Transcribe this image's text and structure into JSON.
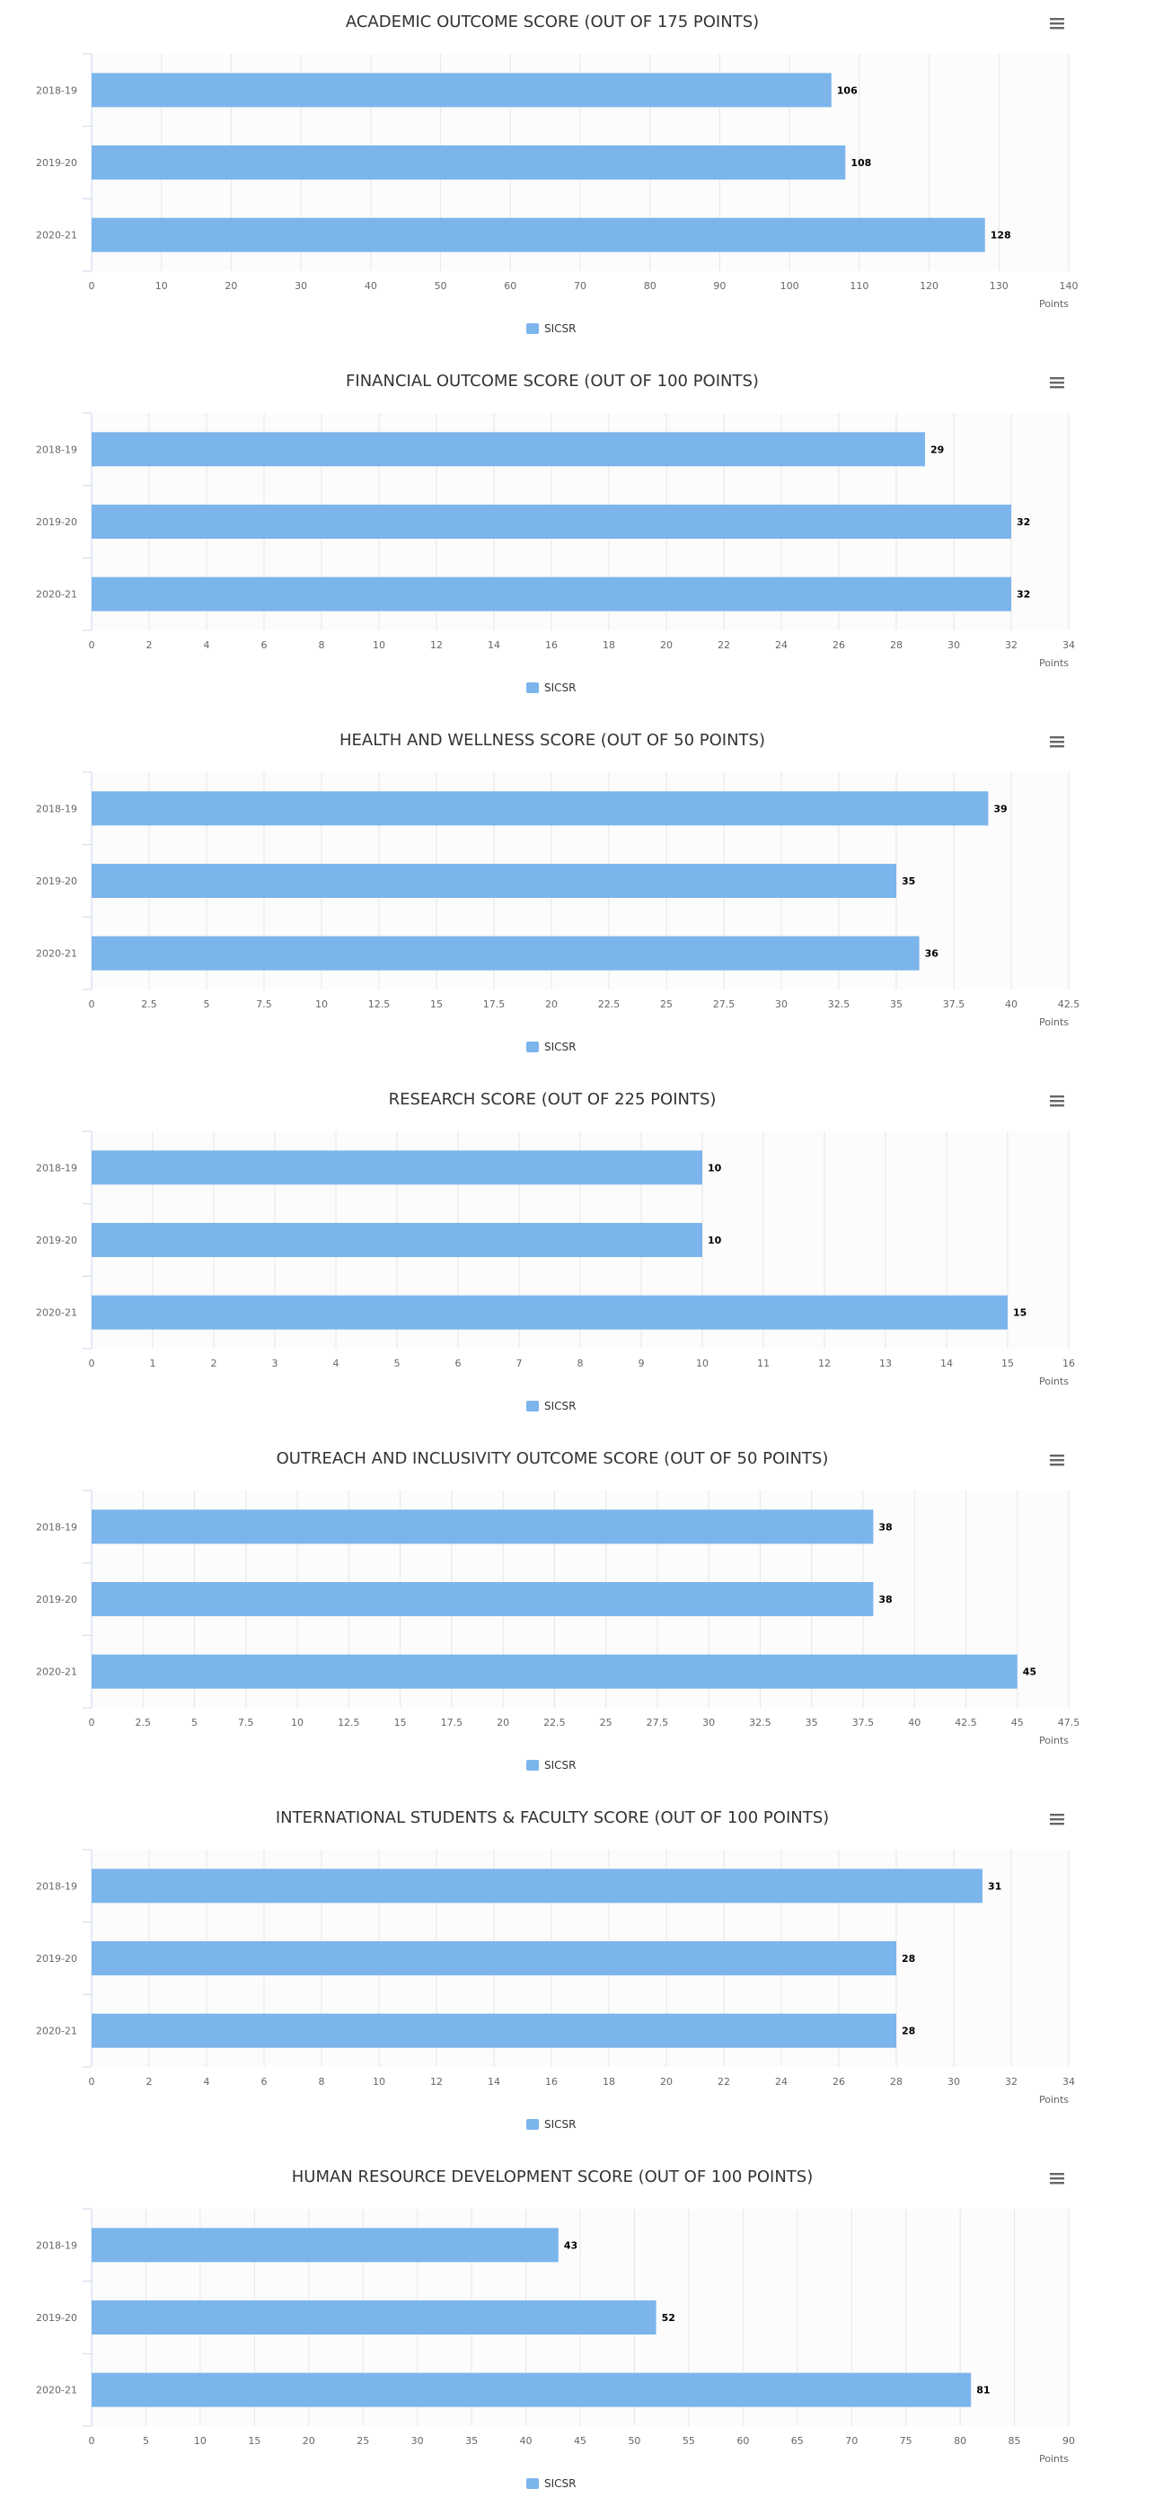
{
  "colors": {
    "bar": "#7cb5ec",
    "grid": "#e6e6e6",
    "axis": "#ccd6eb",
    "plot_bg": "#fcfcfc"
  },
  "menu_icon": "hamburger-menu-icon",
  "chart_data": [
    {
      "type": "bar",
      "orientation": "horizontal",
      "title": "ACADEMIC OUTCOME SCORE (OUT OF 175 POINTS)",
      "categories": [
        "2018-19",
        "2019-20",
        "2020-21"
      ],
      "series": [
        {
          "name": "SICSR",
          "values": [
            106,
            108,
            128
          ]
        }
      ],
      "xlabel": "Points",
      "xlim": [
        0,
        140
      ],
      "ticks": [
        0,
        10,
        20,
        30,
        40,
        50,
        60,
        70,
        80,
        90,
        100,
        110,
        120,
        130,
        140
      ],
      "tick_labels": [
        "0",
        "10",
        "20",
        "30",
        "40",
        "50",
        "60",
        "70",
        "80",
        "90",
        "100",
        "110",
        "120",
        "130",
        "140"
      ],
      "grid": true,
      "legend": "bottom-center"
    },
    {
      "type": "bar",
      "orientation": "horizontal",
      "title": "FINANCIAL OUTCOME SCORE (OUT OF 100 POINTS)",
      "categories": [
        "2018-19",
        "2019-20",
        "2020-21"
      ],
      "series": [
        {
          "name": "SICSR",
          "values": [
            29,
            32,
            32
          ]
        }
      ],
      "xlabel": "Points",
      "xlim": [
        0,
        34
      ],
      "ticks": [
        0,
        2,
        4,
        6,
        8,
        10,
        12,
        14,
        16,
        18,
        20,
        22,
        24,
        26,
        28,
        30,
        32,
        34
      ],
      "tick_labels": [
        "0",
        "2",
        "4",
        "6",
        "8",
        "10",
        "12",
        "14",
        "16",
        "18",
        "20",
        "22",
        "24",
        "26",
        "28",
        "30",
        "32",
        "34"
      ],
      "grid": true,
      "legend": "bottom-center"
    },
    {
      "type": "bar",
      "orientation": "horizontal",
      "title": "HEALTH AND WELLNESS SCORE (OUT OF 50 POINTS)",
      "categories": [
        "2018-19",
        "2019-20",
        "2020-21"
      ],
      "series": [
        {
          "name": "SICSR",
          "values": [
            39,
            35,
            36
          ]
        }
      ],
      "xlabel": "Points",
      "xlim": [
        0,
        42.5
      ],
      "ticks": [
        0,
        2.5,
        5,
        7.5,
        10,
        12.5,
        15,
        17.5,
        20,
        22.5,
        25,
        27.5,
        30,
        32.5,
        35,
        37.5,
        40,
        42.5
      ],
      "tick_labels": [
        "0",
        "2.5",
        "5",
        "7.5",
        "10",
        "12.5",
        "15",
        "17.5",
        "20",
        "22.5",
        "25",
        "27.5",
        "30",
        "32.5",
        "35",
        "37.5",
        "40",
        "42.5"
      ],
      "grid": true,
      "legend": "bottom-center"
    },
    {
      "type": "bar",
      "orientation": "horizontal",
      "title": "RESEARCH SCORE (OUT OF 225 POINTS)",
      "categories": [
        "2018-19",
        "2019-20",
        "2020-21"
      ],
      "series": [
        {
          "name": "SICSR",
          "values": [
            10,
            10,
            15
          ]
        }
      ],
      "xlabel": "Points",
      "xlim": [
        0,
        16
      ],
      "ticks": [
        0,
        1,
        2,
        3,
        4,
        5,
        6,
        7,
        8,
        9,
        10,
        11,
        12,
        13,
        14,
        15,
        16
      ],
      "tick_labels": [
        "0",
        "1",
        "2",
        "3",
        "4",
        "5",
        "6",
        "7",
        "8",
        "9",
        "10",
        "11",
        "12",
        "13",
        "14",
        "15",
        "16"
      ],
      "grid": true,
      "legend": "bottom-center"
    },
    {
      "type": "bar",
      "orientation": "horizontal",
      "title": "OUTREACH AND INCLUSIVITY OUTCOME SCORE (OUT OF 50 POINTS)",
      "categories": [
        "2018-19",
        "2019-20",
        "2020-21"
      ],
      "series": [
        {
          "name": "SICSR",
          "values": [
            38,
            38,
            45
          ]
        }
      ],
      "xlabel": "Points",
      "xlim": [
        0,
        47.5
      ],
      "ticks": [
        0,
        2.5,
        5,
        7.5,
        10,
        12.5,
        15,
        17.5,
        20,
        22.5,
        25,
        27.5,
        30,
        32.5,
        35,
        37.5,
        40,
        42.5,
        45,
        47.5
      ],
      "tick_labels": [
        "0",
        "2.5",
        "5",
        "7.5",
        "10",
        "12.5",
        "15",
        "17.5",
        "20",
        "22.5",
        "25",
        "27.5",
        "30",
        "32.5",
        "35",
        "37.5",
        "40",
        "42.5",
        "45",
        "47.5"
      ],
      "grid": true,
      "legend": "bottom-center"
    },
    {
      "type": "bar",
      "orientation": "horizontal",
      "title": "INTERNATIONAL STUDENTS & FACULTY SCORE (OUT OF 100 POINTS)",
      "categories": [
        "2018-19",
        "2019-20",
        "2020-21"
      ],
      "series": [
        {
          "name": "SICSR",
          "values": [
            31,
            28,
            28
          ]
        }
      ],
      "xlabel": "Points",
      "xlim": [
        0,
        34
      ],
      "ticks": [
        0,
        2,
        4,
        6,
        8,
        10,
        12,
        14,
        16,
        18,
        20,
        22,
        24,
        26,
        28,
        30,
        32,
        34
      ],
      "tick_labels": [
        "0",
        "2",
        "4",
        "6",
        "8",
        "10",
        "12",
        "14",
        "16",
        "18",
        "20",
        "22",
        "24",
        "26",
        "28",
        "30",
        "32",
        "34"
      ],
      "grid": true,
      "legend": "bottom-center"
    },
    {
      "type": "bar",
      "orientation": "horizontal",
      "title": "HUMAN RESOURCE DEVELOPMENT SCORE (OUT OF 100 POINTS)",
      "categories": [
        "2018-19",
        "2019-20",
        "2020-21"
      ],
      "series": [
        {
          "name": "SICSR",
          "values": [
            43,
            52,
            81
          ]
        }
      ],
      "xlabel": "Points",
      "xlim": [
        0,
        90
      ],
      "ticks": [
        0,
        5,
        10,
        15,
        20,
        25,
        30,
        35,
        40,
        45,
        50,
        55,
        60,
        65,
        70,
        75,
        80,
        85,
        90
      ],
      "tick_labels": [
        "0",
        "5",
        "10",
        "15",
        "20",
        "25",
        "30",
        "35",
        "40",
        "45",
        "50",
        "55",
        "60",
        "65",
        "70",
        "75",
        "80",
        "85",
        "90"
      ],
      "grid": true,
      "legend": "bottom-center"
    }
  ]
}
